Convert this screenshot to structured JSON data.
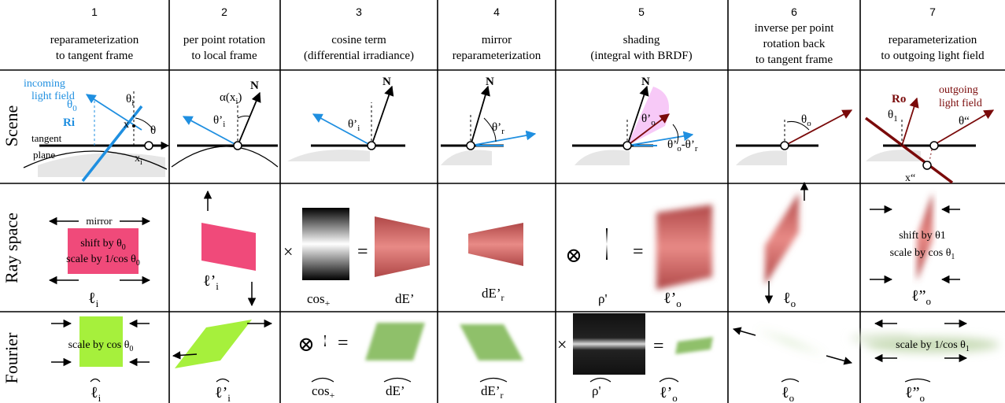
{
  "colors": {
    "blue": "#1f8fe0",
    "dark_red": "#7a0a0a",
    "pink": "#f04a7a",
    "green": "#a6f03c",
    "green_muted": "#8fc06a",
    "red_grad": "#c65858",
    "magenta": "#ee88ee",
    "ground": "#e6e6e6"
  },
  "columns": [
    {
      "num": "1",
      "title1": "reparameterization",
      "title2": "to tangent frame",
      "title3": ""
    },
    {
      "num": "2",
      "title1": "per point rotation",
      "title2": "to local frame",
      "title3": ""
    },
    {
      "num": "3",
      "title1": "cosine term",
      "title2": "(differential irradiance)",
      "title3": ""
    },
    {
      "num": "4",
      "title1": "mirror",
      "title2": "reparameterization",
      "title3": ""
    },
    {
      "num": "5",
      "title1": "shading",
      "title2": "(integral with BRDF)",
      "title3": ""
    },
    {
      "num": "6",
      "title1": "inverse per point",
      "title2": "rotation back",
      "title3": "to tangent frame"
    },
    {
      "num": "7",
      "title1": "reparameterization",
      "title2": "to outgoing light field",
      "title3": ""
    }
  ],
  "rows": {
    "scene": "Scene",
    "ray": "Ray space",
    "fourier": "Fourier"
  },
  "scene": {
    "c1": {
      "incoming1": "incoming",
      "incoming2": "light field",
      "theta0": "θ",
      "theta0_sub": "0",
      "ri": "Ri",
      "theta_i": "θ",
      "theta_i_sub": "i",
      "x": "x",
      "theta": "θ",
      "tangent": "tangent",
      "plane": "plane",
      "xi": "x",
      "xi_sub": "i"
    },
    "c2": {
      "n": "N",
      "alpha": "α(x",
      "alpha_sub": "i",
      "alpha_close": ")",
      "theta_pi": "θ’",
      "theta_pi_sub": "i"
    },
    "c3": {
      "n": "N",
      "theta_pi": "θ’",
      "theta_pi_sub": "i"
    },
    "c4": {
      "n": "N",
      "theta_pr": "θ’",
      "theta_pr_sub": "r"
    },
    "c5": {
      "n": "N",
      "theta_po": "θ’",
      "theta_po_sub": "o",
      "diff": "θ’",
      "diff_sub1": "o",
      "diff_mid": "-θ’",
      "diff_sub2": "r"
    },
    "c6": {
      "theta_o": "θ",
      "theta_o_sub": "o"
    },
    "c7": {
      "ro": "Ro",
      "theta1": "θ",
      "theta1_sub": "1",
      "outgoing1": "outgoing",
      "outgoing2": "light field",
      "thetadd": "θ“",
      "xdd": "x“"
    }
  },
  "ray": {
    "c1": {
      "mirror": "mirror",
      "shift": "shift by θ",
      "shift_sub": "0",
      "scale": "scale by 1/cos θ",
      "scale_sub": "0",
      "label": "ℓ",
      "label_sub": "i"
    },
    "c2": {
      "label": "ℓ’",
      "label_sub": "i"
    },
    "c3": {
      "times": "×",
      "equals": "=",
      "cos": "cos",
      "cos_sub": "+",
      "de": "dE’"
    },
    "c4": {
      "label": "dE’",
      "label_sub": "r"
    },
    "c5": {
      "otimes": "⊗",
      "equals": "=",
      "rho": "ρ'",
      "label": "ℓ’",
      "label_sub": "o"
    },
    "c6": {
      "label": "ℓ",
      "label_sub": "o"
    },
    "c7": {
      "shift": "shift by θ1",
      "scale": "scale by cos θ",
      "scale_sub": "1",
      "label": "ℓ”",
      "label_sub": "o"
    }
  },
  "fourier": {
    "c1": {
      "scale": "scale by cos θ",
      "scale_sub": "0",
      "label": "ℓ",
      "label_sub": "i"
    },
    "c2": {
      "label": "ℓ’",
      "label_sub": "i"
    },
    "c3": {
      "otimes": "⊗",
      "equals": "=",
      "cos": "cos",
      "cos_sub": "+",
      "de": "dE’"
    },
    "c4": {
      "label": "dE’",
      "label_sub": "r"
    },
    "c5": {
      "times": "×",
      "equals": "=",
      "rho": "ρ'",
      "label": "ℓ’",
      "label_sub": "o"
    },
    "c6": {
      "label": "ℓ",
      "label_sub": "o"
    },
    "c7": {
      "scale": "scale by 1/cos θ",
      "scale_sub": "1",
      "label": "ℓ”",
      "label_sub": "o"
    }
  }
}
